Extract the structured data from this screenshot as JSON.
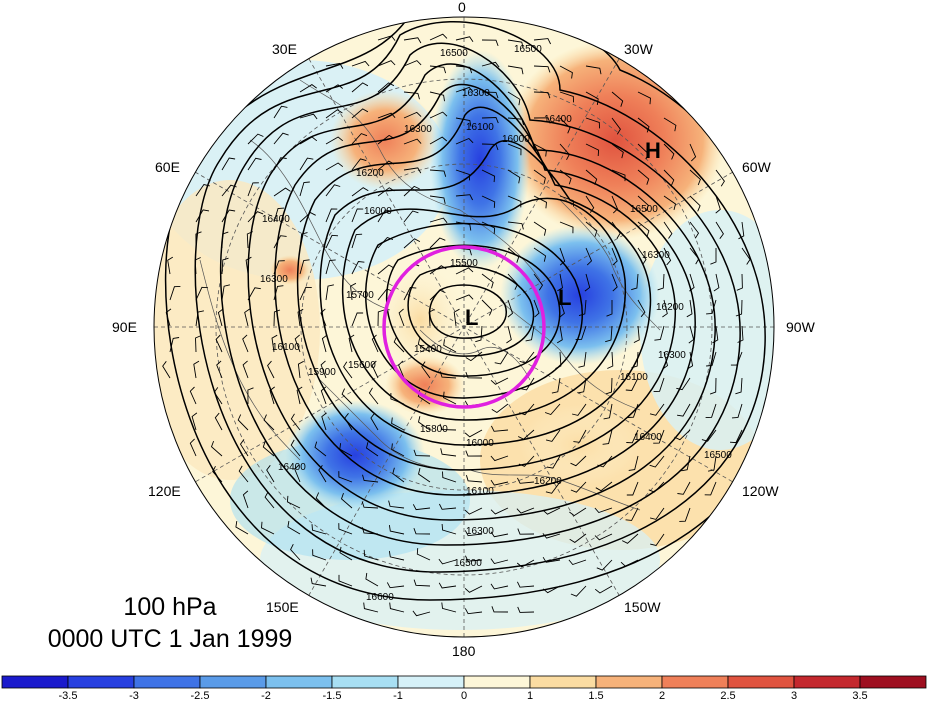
{
  "map": {
    "title_level": "100 hPa",
    "title_time": "0000 UTC 1 Jan 1999",
    "longitude_labels": [
      {
        "text": "0"
      },
      {
        "text": "30W"
      },
      {
        "text": "60W"
      },
      {
        "text": "90W"
      },
      {
        "text": "120W"
      },
      {
        "text": "150W"
      },
      {
        "text": "180"
      },
      {
        "text": "150E"
      },
      {
        "text": "120E"
      },
      {
        "text": "90E"
      },
      {
        "text": "60E"
      },
      {
        "text": "30E"
      }
    ],
    "pressure_centers": [
      {
        "text": "H",
        "kind": "high"
      },
      {
        "text": "L",
        "kind": "low"
      },
      {
        "text": "L",
        "kind": "low"
      }
    ],
    "contour_labels": [
      "16500",
      "16500",
      "16300",
      "16100",
      "16400",
      "16300",
      "16000",
      "16200",
      "16000",
      "16400",
      "16300",
      "15700",
      "15900",
      "15600",
      "16100",
      "15500",
      "15400",
      "16500",
      "16300",
      "16200",
      "16300",
      "16100",
      "16400",
      "16500",
      "16000",
      "16100",
      "16200",
      "16300",
      "16500",
      "16600",
      "15800",
      "16400"
    ],
    "colorbar": {
      "labels": [
        "-3.5",
        "-3",
        "-2.5",
        "-2",
        "-1.5",
        "-1",
        "0",
        "1",
        "1.5",
        "2",
        "2.5",
        "3",
        "3.5"
      ],
      "colors": [
        "#1a1acc",
        "#2740e0",
        "#3f73e6",
        "#5a9be8",
        "#7cc0ee",
        "#a8dff3",
        "#d6f1f8",
        "#fdf6d8",
        "#fbdca2",
        "#f6b27a",
        "#ef8059",
        "#e0533f",
        "#c4282e",
        "#9e0f20"
      ]
    }
  }
}
